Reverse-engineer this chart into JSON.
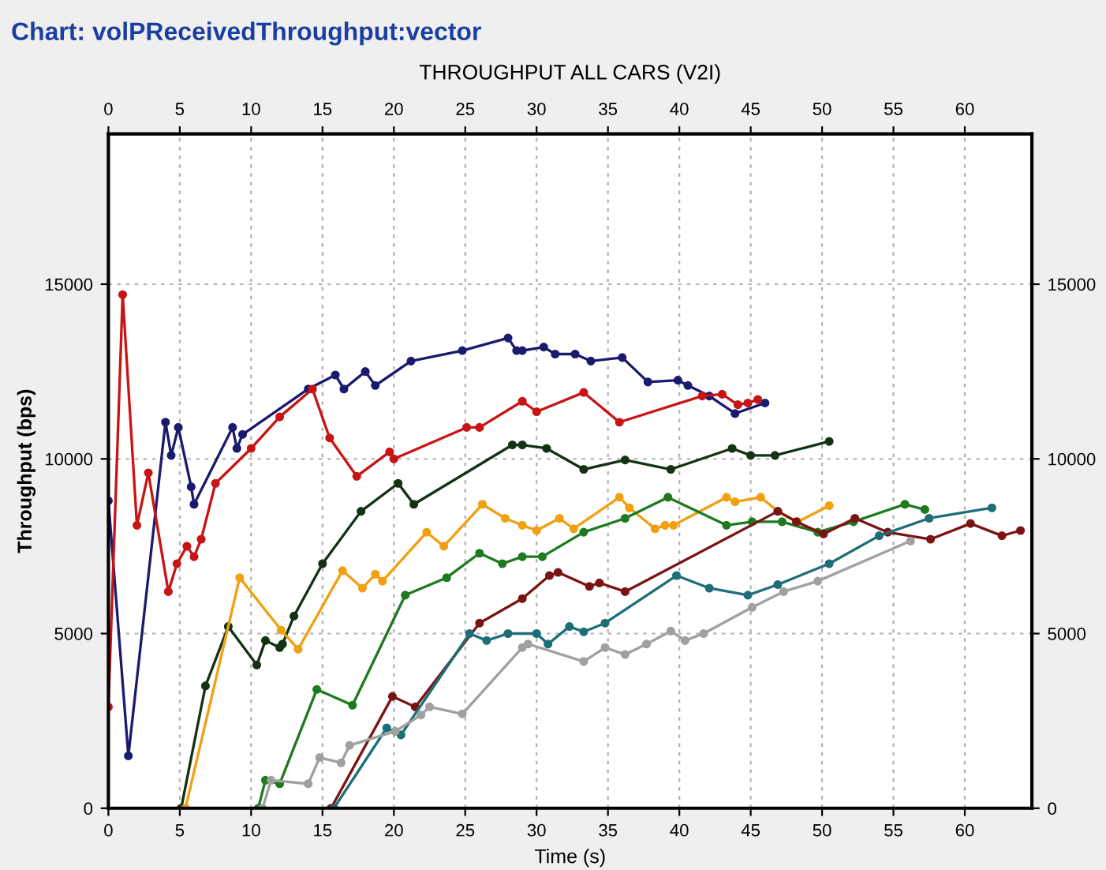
{
  "chart_data": {
    "type": "line",
    "title": "Chart: volPReceivedThroughput:vector",
    "subtitle": "THROUGHPUT ALL CARS (V2I)",
    "xlabel": "Time (s)",
    "ylabel": "Throughput (bps)",
    "xlim": [
      0,
      64.7
    ],
    "xticks": [
      0,
      5,
      10,
      15,
      20,
      25,
      30,
      35,
      40,
      45,
      50,
      55,
      60
    ],
    "x2lim": [
      0,
      64.7
    ],
    "x2ticks": [
      0,
      5,
      10,
      15,
      20,
      25,
      30,
      35,
      40,
      45,
      50,
      55,
      60
    ],
    "ylim": [
      0,
      19300
    ],
    "yticks": [
      0,
      5000,
      10000,
      15000
    ],
    "y2lim": [
      0,
      19300
    ],
    "y2ticks": [
      0,
      5000,
      10000,
      15000
    ],
    "grid": true,
    "legend": false,
    "marker": "circle",
    "line_style": "solid",
    "series": [
      {
        "color": "#1a1a6e",
        "x": [
          0,
          1.4,
          4.0,
          4.4,
          4.9,
          5.8,
          6.0,
          8.7,
          9.0,
          9.4,
          14.0,
          15.9,
          16.5,
          18.0,
          18.7,
          21.2,
          24.8,
          28.0,
          28.6,
          29.0,
          30.5,
          31.3,
          32.7,
          33.8,
          36.0,
          37.8,
          39.9,
          40.6,
          42.1,
          43.9,
          46.0
        ],
        "values": [
          8800,
          1500,
          11050,
          10100,
          10900,
          9200,
          8700,
          10900,
          10300,
          10700,
          12000,
          12400,
          12000,
          12500,
          12100,
          12800,
          13100,
          13460,
          13100,
          13100,
          13200,
          13000,
          13000,
          12800,
          12900,
          12200,
          12250,
          12100,
          11800,
          11300,
          11600
        ]
      },
      {
        "color": "#c81414",
        "x": [
          0,
          1.0,
          2.0,
          2.8,
          4.2,
          4.8,
          5.5,
          6.0,
          6.5,
          7.5,
          10.0,
          12.0,
          14.3,
          15.5,
          17.4,
          19.7,
          20.0,
          25.1,
          26.0,
          29.0,
          30.0,
          33.3,
          35.8,
          41.6,
          43.0,
          44.1,
          44.8,
          45.5
        ],
        "values": [
          2900,
          14700,
          8100,
          9600,
          6200,
          7000,
          7500,
          7200,
          7700,
          9300,
          10300,
          11200,
          12000,
          10600,
          9500,
          10200,
          10000,
          10900,
          10900,
          11650,
          11350,
          11900,
          11050,
          11800,
          11850,
          11550,
          11600,
          11700
        ]
      },
      {
        "color": "#143214",
        "x": [
          5.1,
          6.8,
          8.4,
          10.4,
          11.0,
          12.0,
          12.2,
          13.0,
          15.0,
          17.7,
          20.3,
          21.4,
          28.3,
          29.0,
          30.7,
          33.3,
          36.2,
          39.4,
          43.7,
          45.0,
          46.7,
          50.5
        ],
        "values": [
          0,
          3500,
          5200,
          4100,
          4800,
          4600,
          4700,
          5500,
          7000,
          8500,
          9300,
          8700,
          10400,
          10400,
          10300,
          9700,
          9970,
          9700,
          10300,
          10100,
          10100,
          10500
        ]
      },
      {
        "color": "#f0a010",
        "x": [
          5.4,
          9.2,
          12.1,
          13.3,
          16.4,
          17.8,
          18.7,
          19.2,
          22.3,
          23.5,
          26.2,
          27.8,
          29.0,
          30.0,
          31.6,
          32.6,
          35.8,
          36.5,
          38.3,
          39.0,
          39.6,
          43.3,
          43.9,
          45.7,
          46.9,
          48.3,
          50.5
        ],
        "values": [
          0,
          6600,
          5100,
          4550,
          6800,
          6300,
          6700,
          6500,
          7900,
          7500,
          8700,
          8300,
          8100,
          7950,
          8300,
          8000,
          8900,
          8600,
          8000,
          8100,
          8100,
          8900,
          8770,
          8900,
          8500,
          8200,
          8660
        ]
      },
      {
        "color": "#1e7a1e",
        "x": [
          10.5,
          11.0,
          12.0,
          14.6,
          17.1,
          20.8,
          23.7,
          26.0,
          27.6,
          29.0,
          30.4,
          33.3,
          36.2,
          39.2,
          43.3,
          45.1,
          47.2,
          49.7,
          52.2,
          55.8,
          57.2
        ],
        "values": [
          0,
          800,
          700,
          3400,
          2950,
          6100,
          6600,
          7300,
          7000,
          7200,
          7200,
          7900,
          8300,
          8900,
          8100,
          8200,
          8200,
          7900,
          8200,
          8700,
          8550
        ]
      },
      {
        "color": "#7a1414",
        "x": [
          15.6,
          19.9,
          21.5,
          26.0,
          29.0,
          30.9,
          31.5,
          33.7,
          34.4,
          36.2,
          46.9,
          48.2,
          50.1,
          52.3,
          54.6,
          57.6,
          60.4,
          62.6,
          63.9
        ],
        "values": [
          0,
          3200,
          2900,
          5300,
          6000,
          6660,
          6750,
          6350,
          6450,
          6200,
          8500,
          8200,
          7850,
          8300,
          7900,
          7700,
          8150,
          7800,
          7950
        ]
      },
      {
        "color": "#1e6e78",
        "x": [
          15.8,
          19.5,
          20.5,
          25.3,
          26.5,
          28.0,
          30.0,
          30.8,
          32.3,
          33.3,
          34.8,
          39.8,
          42.1,
          44.8,
          46.9,
          50.5,
          54.0,
          57.5,
          61.9
        ],
        "values": [
          0,
          2300,
          2100,
          5000,
          4800,
          5000,
          5000,
          4700,
          5200,
          5050,
          5300,
          6660,
          6300,
          6100,
          6400,
          7000,
          7800,
          8300,
          8600
        ]
      },
      {
        "color": "#a0a0a0",
        "x": [
          10.8,
          11.4,
          14.0,
          14.8,
          16.3,
          16.9,
          20.1,
          21.9,
          22.5,
          24.8,
          29.0,
          29.4,
          33.3,
          34.8,
          36.2,
          37.7,
          39.4,
          40.4,
          41.7,
          45.1,
          47.3,
          49.7,
          56.2
        ],
        "values": [
          0,
          800,
          700,
          1450,
          1300,
          1800,
          2200,
          2670,
          2900,
          2700,
          4600,
          4700,
          4200,
          4600,
          4400,
          4700,
          5070,
          4800,
          5000,
          5750,
          6200,
          6500,
          7650
        ]
      }
    ]
  }
}
